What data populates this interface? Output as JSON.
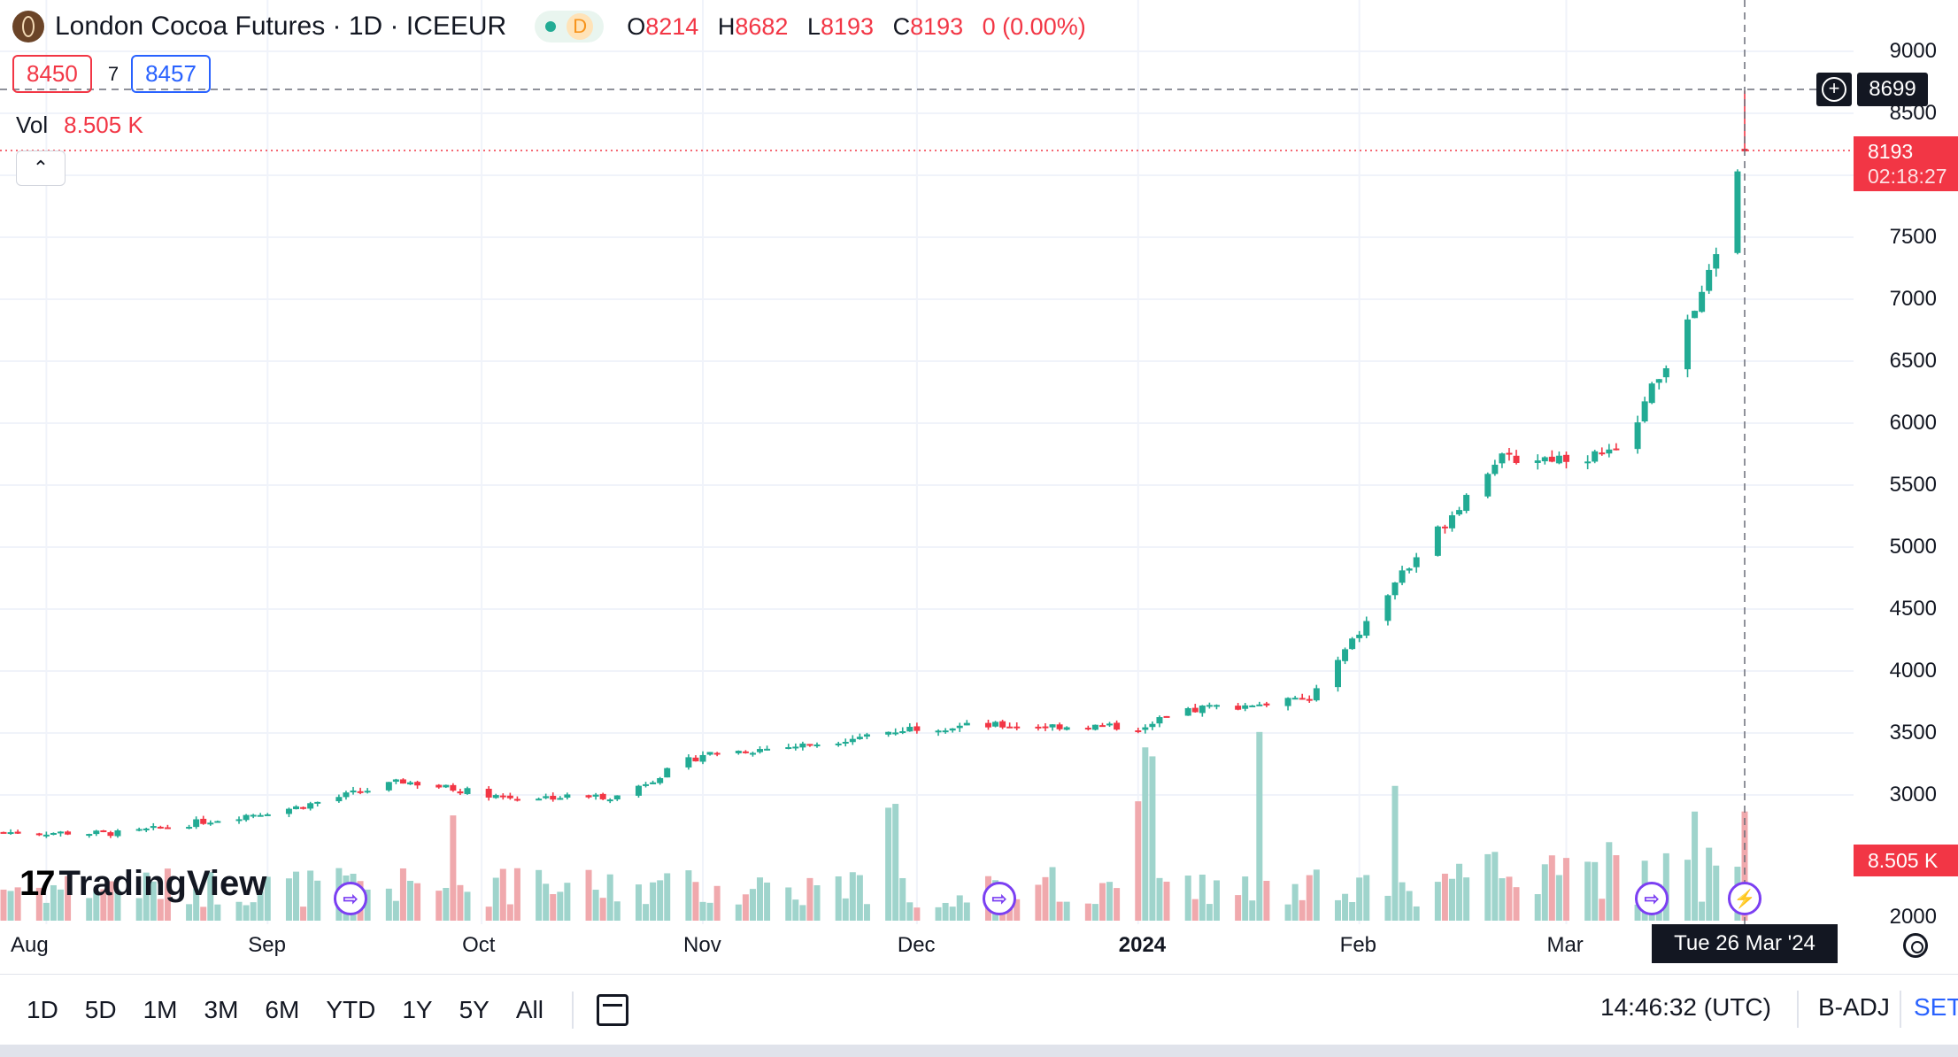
{
  "header": {
    "symbol_title": "London Cocoa Futures · 1D · ICEEUR",
    "market_status": "D",
    "ohlc": {
      "o_key": "O",
      "o_val": "8214",
      "h_key": "H",
      "h_val": "8682",
      "l_key": "L",
      "l_val": "8193",
      "c_key": "C",
      "c_val": "8193",
      "change": "0 (0.00%)"
    }
  },
  "bidask": {
    "bid": "8450",
    "spread": "7",
    "ask": "8457"
  },
  "volume_legend": {
    "label": "Vol",
    "value": "8.505 K"
  },
  "watermark": {
    "logo": "17",
    "text": "TradingView"
  },
  "price_axis": {
    "labels": [
      "9000",
      "8500",
      "7500",
      "7000",
      "6500",
      "6000",
      "5500",
      "5000",
      "4500",
      "4000",
      "3500",
      "3000",
      "2000"
    ]
  },
  "crosshair": {
    "price": "8699",
    "date": "Tue 26 Mar '24"
  },
  "last_price": {
    "value": "8193",
    "countdown": "02:18:27"
  },
  "volume_tag": "8.505 K",
  "time_axis": {
    "labels": [
      "Aug",
      "Sep",
      "Oct",
      "Nov",
      "Dec",
      "2024",
      "Feb",
      "Mar"
    ]
  },
  "bottom_bar": {
    "ranges": [
      "1D",
      "5D",
      "1M",
      "3M",
      "6M",
      "YTD",
      "1Y",
      "5Y",
      "All"
    ],
    "clock": "14:46:32 (UTC)",
    "adjustment": "B-ADJ",
    "settings": "SET"
  },
  "colors": {
    "up": "#22ab94",
    "down": "#f23645",
    "up_vol": "#9fd4cc",
    "down_vol": "#f0a9ad",
    "event": "#7b3ff2"
  },
  "chart_data": {
    "type": "candlestick",
    "title": "London Cocoa Futures · 1D · ICEEUR",
    "ylim": [
      2000,
      9000
    ],
    "x_ticks": [
      "Aug",
      "Sep",
      "Oct",
      "Nov",
      "Dec",
      "2024",
      "Feb",
      "Mar"
    ],
    "series": [
      {
        "name": "price",
        "segments": [
          {
            "from": "2023-07-26",
            "to": "2023-08-12",
            "start": 2700,
            "end": 2690
          },
          {
            "from": "2023-08-12",
            "to": "2023-09-05",
            "start": 2690,
            "end": 2900
          },
          {
            "from": "2023-09-05",
            "to": "2023-09-20",
            "start": 2900,
            "end": 3110
          },
          {
            "from": "2023-09-20",
            "to": "2023-10-05",
            "start": 3110,
            "end": 2980
          },
          {
            "from": "2023-10-05",
            "to": "2023-10-20",
            "start": 2980,
            "end": 2990
          },
          {
            "from": "2023-10-20",
            "to": "2023-11-01",
            "start": 2990,
            "end": 3330
          },
          {
            "from": "2023-11-01",
            "to": "2023-11-15",
            "start": 3330,
            "end": 3400
          },
          {
            "from": "2023-11-15",
            "to": "2023-12-01",
            "start": 3400,
            "end": 3550
          },
          {
            "from": "2023-12-01",
            "to": "2023-12-15",
            "start": 3550,
            "end": 3560
          },
          {
            "from": "2023-12-15",
            "to": "2024-01-01",
            "start": 3560,
            "end": 3550
          },
          {
            "from": "2024-01-01",
            "to": "2024-01-10",
            "start": 3550,
            "end": 3700
          },
          {
            "from": "2024-01-10",
            "to": "2024-01-25",
            "start": 3700,
            "end": 3770
          },
          {
            "from": "2024-01-25",
            "to": "2024-02-08",
            "start": 3770,
            "end": 4850
          },
          {
            "from": "2024-02-08",
            "to": "2024-02-20",
            "start": 4850,
            "end": 5700
          },
          {
            "from": "2024-02-20",
            "to": "2024-03-08",
            "start": 5700,
            "end": 5750
          },
          {
            "from": "2024-03-08",
            "to": "2024-03-20",
            "start": 5750,
            "end": 7000
          },
          {
            "from": "2024-03-20",
            "to": "2024-03-26",
            "start": 7000,
            "end": 8193
          }
        ]
      },
      {
        "name": "volume",
        "volume_spikes": [
          {
            "date": "2023-09-27",
            "value_k": 8.2
          },
          {
            "date": "2023-11-27",
            "value_k": 8.8
          },
          {
            "date": "2023-11-28",
            "value_k": 9.1
          },
          {
            "date": "2024-01-01",
            "value_k": 9.3
          },
          {
            "date": "2024-01-02",
            "value_k": 13.5
          },
          {
            "date": "2024-01-03",
            "value_k": 12.8
          },
          {
            "date": "2024-01-18",
            "value_k": 14.7
          },
          {
            "date": "2024-02-06",
            "value_k": 10.5
          },
          {
            "date": "2024-03-19",
            "value_k": 8.5
          }
        ]
      }
    ],
    "last_candle": {
      "date": "2024-03-26",
      "open": 8214,
      "high": 8682,
      "low": 8193,
      "close": 8193,
      "volume": "8.505 K"
    }
  }
}
